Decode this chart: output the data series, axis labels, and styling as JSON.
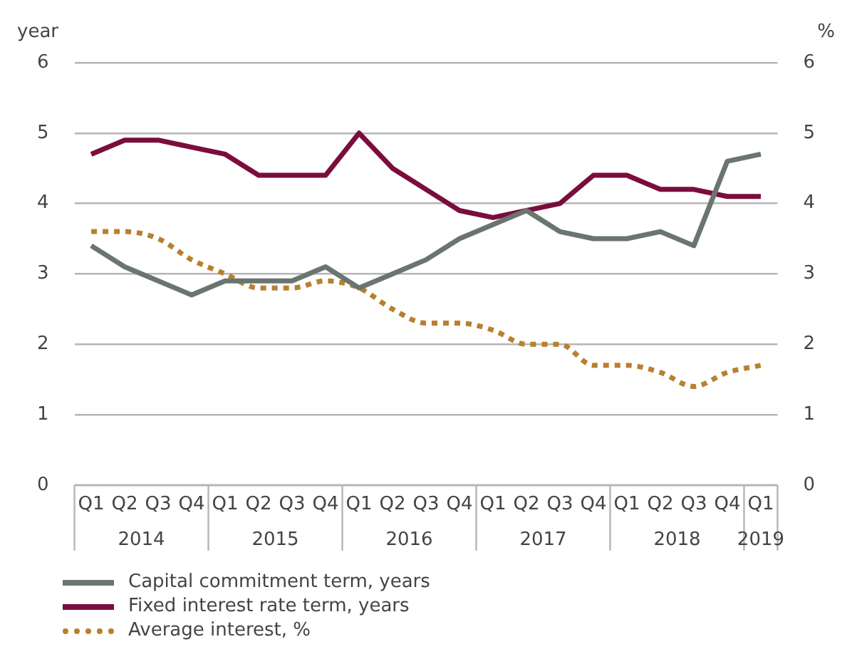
{
  "chart_data": {
    "type": "line",
    "ylabel": "year",
    "y2label": "%",
    "categories": [
      "Q1",
      "Q2",
      "Q3",
      "Q4",
      "Q1",
      "Q2",
      "Q3",
      "Q4",
      "Q1",
      "Q2",
      "Q3",
      "Q4",
      "Q1",
      "Q2",
      "Q3",
      "Q4",
      "Q1",
      "Q2",
      "Q3",
      "Q4",
      "Q1"
    ],
    "annotations": [
      "2014",
      "2015",
      "2016",
      "2017",
      "2018",
      "2019"
    ],
    "series": [
      {
        "name": "Capital commitment term, years",
        "color": "#6b7570",
        "line_style": "solid",
        "values": [
          3.4,
          3.1,
          2.9,
          2.7,
          2.9,
          2.9,
          2.9,
          3.1,
          2.8,
          3.0,
          3.2,
          3.5,
          3.7,
          3.9,
          3.6,
          3.5,
          3.5,
          3.6,
          3.4,
          4.6,
          4.7
        ]
      },
      {
        "name": "Fixed interest rate term, years",
        "color": "#7a0d3e",
        "line_style": "solid",
        "values": [
          4.7,
          4.9,
          4.9,
          4.8,
          4.7,
          4.4,
          4.4,
          4.4,
          5.0,
          4.5,
          4.2,
          3.9,
          3.8,
          3.9,
          4.0,
          4.4,
          4.4,
          4.2,
          4.2,
          4.1,
          4.1
        ]
      },
      {
        "name": "Average interest, %",
        "color": "#b8802e",
        "line_style": "dotted",
        "axis": "y2",
        "values": [
          3.6,
          3.6,
          3.5,
          3.2,
          3.0,
          2.8,
          2.8,
          2.9,
          2.8,
          2.5,
          2.3,
          2.3,
          2.2,
          2.0,
          2.0,
          1.7,
          1.7,
          1.6,
          1.4,
          1.6,
          1.7
        ]
      }
    ],
    "ylim": [
      0,
      6
    ],
    "yticks": [
      0,
      1,
      2,
      3,
      4,
      5,
      6
    ],
    "y2lim": [
      0,
      6
    ],
    "y2ticks": [
      0,
      1,
      2,
      3,
      4,
      5,
      6
    ],
    "grid": "y",
    "legend": "bottom",
    "marker": "none"
  }
}
